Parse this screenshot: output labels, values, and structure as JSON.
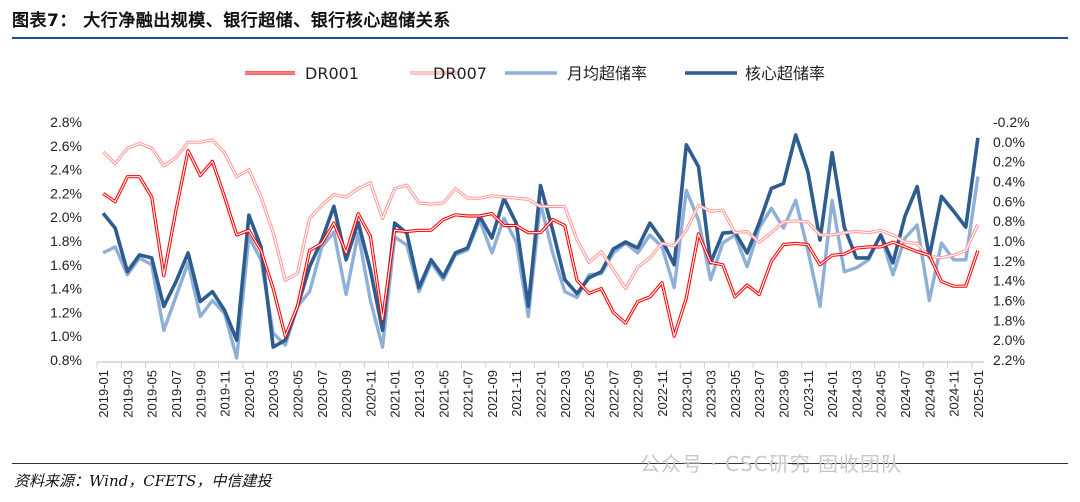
{
  "title": "图表7：  大行净融出规模、银行超储、银行核心超储关系",
  "source": "资料来源：Wind，CFETS，中信建投",
  "watermark": "公众号 · CSC研究 固收团队",
  "chart_data": {
    "type": "line",
    "title": "",
    "xlabel": "",
    "ylabel_left": "",
    "ylabel_right": "",
    "x": [
      "2019-01",
      "2019-02",
      "2019-03",
      "2019-04",
      "2019-05",
      "2019-06",
      "2019-07",
      "2019-08",
      "2019-09",
      "2019-10",
      "2019-11",
      "2019-12",
      "2020-01",
      "2020-02",
      "2020-03",
      "2020-04",
      "2020-05",
      "2020-06",
      "2020-07",
      "2020-08",
      "2020-09",
      "2020-10",
      "2020-11",
      "2020-12",
      "2021-01",
      "2021-02",
      "2021-03",
      "2021-04",
      "2021-05",
      "2021-06",
      "2021-07",
      "2021-08",
      "2021-09",
      "2021-10",
      "2021-11",
      "2021-12",
      "2022-01",
      "2022-02",
      "2022-03",
      "2022-04",
      "2022-05",
      "2022-06",
      "2022-07",
      "2022-08",
      "2022-09",
      "2022-10",
      "2022-11",
      "2022-12",
      "2023-01",
      "2023-02",
      "2023-03",
      "2023-04",
      "2023-05",
      "2023-06",
      "2023-07",
      "2023-08",
      "2023-09",
      "2023-10",
      "2023-11",
      "2023-12",
      "2024-01",
      "2024-02",
      "2024-03",
      "2024-04",
      "2024-05",
      "2024-06",
      "2024-07",
      "2024-08",
      "2024-09",
      "2024-10",
      "2024-11",
      "2024-12",
      "2025-01"
    ],
    "x_tick_labels": [
      "2019-01",
      "2019-03",
      "2019-05",
      "2019-07",
      "2019-09",
      "2019-11",
      "2020-01",
      "2020-03",
      "2020-05",
      "2020-07",
      "2020-09",
      "2020-11",
      "2021-01",
      "2021-03",
      "2021-05",
      "2021-07",
      "2021-09",
      "2021-11",
      "2022-01",
      "2022-03",
      "2022-05",
      "2022-07",
      "2022-09",
      "2022-11",
      "2023-01",
      "2023-03",
      "2023-05",
      "2023-07",
      "2023-09",
      "2023-11",
      "2024-01",
      "2024-03",
      "2024-05",
      "2024-07",
      "2024-09",
      "2024-11",
      "2025-01"
    ],
    "ylim_left": [
      0.8,
      2.8
    ],
    "ylim_right": [
      -0.2,
      2.2
    ],
    "right_axis_reversed": true,
    "y_ticks_left": [
      "2.8%",
      "2.6%",
      "2.4%",
      "2.2%",
      "2.0%",
      "1.8%",
      "1.6%",
      "1.4%",
      "1.2%",
      "1.0%",
      "0.8%"
    ],
    "y_ticks_right": [
      "-0.2%",
      "0.0%",
      "0.2%",
      "0.4%",
      "0.6%",
      "0.8%",
      "1.0%",
      "1.2%",
      "1.4%",
      "1.6%",
      "1.8%",
      "2.0%",
      "2.2%"
    ],
    "grid": false,
    "legend_position": "top-center",
    "series": [
      {
        "name": "DR001",
        "axis": "left",
        "color": "#ff0000",
        "style": "double",
        "values": [
          2.2,
          2.13,
          2.34,
          2.34,
          2.17,
          1.51,
          2.06,
          2.56,
          2.35,
          2.47,
          2.17,
          1.85,
          1.89,
          1.72,
          1.4,
          1.0,
          1.25,
          1.72,
          1.78,
          1.95,
          1.7,
          2.03,
          1.84,
          1.14,
          1.89,
          1.88,
          1.89,
          1.89,
          1.98,
          2.02,
          2.01,
          2.01,
          2.03,
          1.93,
          1.93,
          1.87,
          1.87,
          1.98,
          1.93,
          1.47,
          1.36,
          1.4,
          1.2,
          1.11,
          1.29,
          1.33,
          1.45,
          1.0,
          1.32,
          1.86,
          1.62,
          1.6,
          1.33,
          1.43,
          1.35,
          1.63,
          1.77,
          1.78,
          1.77,
          1.6,
          1.68,
          1.69,
          1.74,
          1.75,
          1.75,
          1.79,
          1.75,
          1.71,
          1.68,
          1.46,
          1.42,
          1.42,
          1.72
        ]
      },
      {
        "name": "DR007",
        "axis": "left",
        "color": "#ff9a9a",
        "style": "double",
        "values": [
          2.55,
          2.45,
          2.58,
          2.62,
          2.58,
          2.43,
          2.5,
          2.63,
          2.63,
          2.65,
          2.54,
          2.34,
          2.4,
          2.17,
          1.87,
          1.47,
          1.53,
          1.99,
          2.1,
          2.19,
          2.17,
          2.24,
          2.29,
          1.99,
          2.24,
          2.27,
          2.12,
          2.11,
          2.12,
          2.24,
          2.16,
          2.16,
          2.18,
          2.17,
          2.16,
          2.15,
          2.09,
          2.09,
          2.09,
          1.81,
          1.62,
          1.71,
          1.56,
          1.4,
          1.58,
          1.66,
          1.78,
          1.76,
          1.89,
          2.1,
          2.05,
          2.06,
          1.87,
          1.88,
          1.79,
          1.87,
          1.96,
          1.97,
          1.96,
          1.85,
          1.85,
          1.87,
          1.88,
          1.87,
          1.89,
          1.85,
          1.79,
          1.78,
          1.67,
          1.66,
          1.68,
          1.72,
          1.94
        ]
      },
      {
        "name": "月均超储率",
        "axis": "right",
        "color": "#8eb0d8",
        "style": "thick",
        "values": [
          1.12,
          1.06,
          1.34,
          1.17,
          1.24,
          1.9,
          1.56,
          1.22,
          1.76,
          1.6,
          1.73,
          2.18,
          0.96,
          1.19,
          1.93,
          2.05,
          1.66,
          1.51,
          1.06,
          0.91,
          1.54,
          0.92,
          1.6,
          2.07,
          0.96,
          1.04,
          1.51,
          1.22,
          1.39,
          1.14,
          1.09,
          0.79,
          1.12,
          0.77,
          1.01,
          1.76,
          0.62,
          1.12,
          1.51,
          1.57,
          1.34,
          1.33,
          1.12,
          1.02,
          1.12,
          0.94,
          1.06,
          1.47,
          0.49,
          0.79,
          1.39,
          1.02,
          0.94,
          1.26,
          0.87,
          0.67,
          0.87,
          0.59,
          1.09,
          1.66,
          0.59,
          1.31,
          1.27,
          1.19,
          0.94,
          1.34,
          0.97,
          0.84,
          1.6,
          1.02,
          1.19,
          1.19,
          0.35
        ]
      },
      {
        "name": "核心超储率",
        "axis": "right",
        "color": "#2f5c8f",
        "style": "thick",
        "values": [
          0.72,
          0.87,
          1.31,
          1.14,
          1.17,
          1.66,
          1.41,
          1.12,
          1.61,
          1.51,
          1.7,
          2.0,
          0.74,
          1.06,
          2.07,
          2.0,
          1.66,
          1.26,
          0.99,
          0.65,
          1.19,
          0.81,
          1.29,
          1.9,
          0.82,
          0.92,
          1.47,
          1.19,
          1.36,
          1.12,
          1.07,
          0.75,
          0.97,
          0.57,
          0.82,
          1.66,
          0.44,
          0.89,
          1.39,
          1.53,
          1.37,
          1.31,
          1.08,
          1.01,
          1.07,
          0.82,
          0.99,
          1.24,
          0.03,
          0.25,
          1.22,
          0.92,
          0.91,
          1.12,
          0.82,
          0.47,
          0.42,
          -0.07,
          0.3,
          0.99,
          0.11,
          0.86,
          1.17,
          1.17,
          0.94,
          1.22,
          0.75,
          0.45,
          1.16,
          0.55,
          0.7,
          0.86,
          -0.04
        ]
      }
    ]
  }
}
